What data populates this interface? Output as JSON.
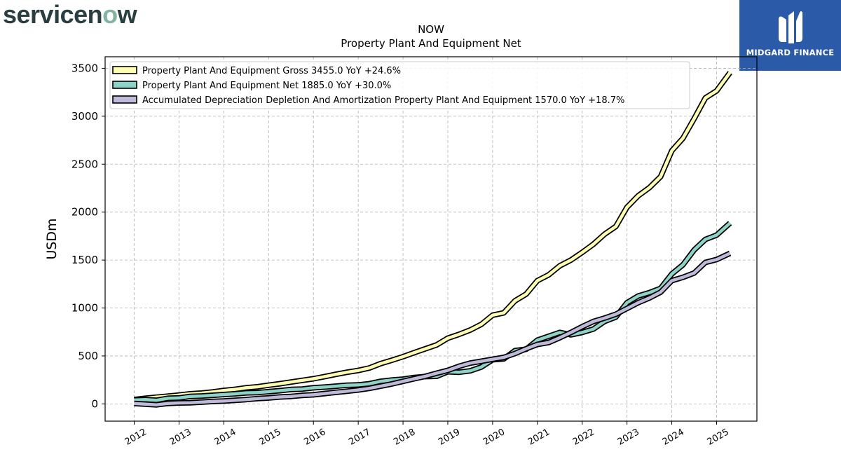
{
  "brand": {
    "logo_text_pre": "servicen",
    "logo_text_o": "o",
    "logo_text_post": "w",
    "sponsor_text": "MIDGARD FINANCE",
    "sponsor_bg": "#2b5aa8"
  },
  "chart_data": {
    "type": "line",
    "title": "NOW",
    "subtitle": "Property Plant And Equipment Net",
    "ylabel": "USDm",
    "xlabel": "",
    "ylim": [
      -180,
      3620
    ],
    "xlim": [
      2011.35,
      2025.9
    ],
    "yticks": [
      0,
      500,
      1000,
      1500,
      2000,
      2500,
      3000,
      3500
    ],
    "xticks": [
      "2012",
      "2013",
      "2014",
      "2015",
      "2016",
      "2017",
      "2018",
      "2019",
      "2020",
      "2021",
      "2022",
      "2023",
      "2024",
      "2025"
    ],
    "grid": true,
    "legend_position": "top-left",
    "series": [
      {
        "name": "Property Plant And Equipment Gross  3455.0 YoY +24.6%",
        "color": "#ffffb3",
        "points": [
          [
            2012.0,
            45
          ],
          [
            2012.25,
            58
          ],
          [
            2012.5,
            70
          ],
          [
            2012.75,
            80
          ],
          [
            2013.0,
            92
          ],
          [
            2013.25,
            105
          ],
          [
            2013.5,
            112
          ],
          [
            2013.75,
            125
          ],
          [
            2014.0,
            140
          ],
          [
            2014.25,
            152
          ],
          [
            2014.5,
            168
          ],
          [
            2014.75,
            178
          ],
          [
            2015.0,
            195
          ],
          [
            2015.25,
            210
          ],
          [
            2015.5,
            228
          ],
          [
            2015.75,
            245
          ],
          [
            2016.0,
            262
          ],
          [
            2016.25,
            285
          ],
          [
            2016.5,
            308
          ],
          [
            2016.75,
            330
          ],
          [
            2017.0,
            348
          ],
          [
            2017.25,
            375
          ],
          [
            2017.5,
            420
          ],
          [
            2017.75,
            455
          ],
          [
            2018.0,
            492
          ],
          [
            2018.25,
            535
          ],
          [
            2018.5,
            575
          ],
          [
            2018.75,
            615
          ],
          [
            2019.0,
            685
          ],
          [
            2019.25,
            725
          ],
          [
            2019.5,
            770
          ],
          [
            2019.75,
            830
          ],
          [
            2020.0,
            925
          ],
          [
            2020.25,
            950
          ],
          [
            2020.5,
            1075
          ],
          [
            2020.75,
            1145
          ],
          [
            2021.0,
            1285
          ],
          [
            2021.25,
            1345
          ],
          [
            2021.5,
            1440
          ],
          [
            2021.75,
            1500
          ],
          [
            2022.0,
            1580
          ],
          [
            2022.25,
            1665
          ],
          [
            2022.5,
            1770
          ],
          [
            2022.75,
            1850
          ],
          [
            2023.0,
            2050
          ],
          [
            2023.25,
            2170
          ],
          [
            2023.5,
            2255
          ],
          [
            2023.75,
            2370
          ],
          [
            2024.0,
            2640
          ],
          [
            2024.25,
            2770
          ],
          [
            2024.5,
            2975
          ],
          [
            2024.75,
            3190
          ],
          [
            2025.0,
            3265
          ],
          [
            2025.3,
            3455
          ]
        ]
      },
      {
        "name": "Property Plant And Equipment Net  1885.0 YoY +30.0%",
        "color": "#8dd3c7",
        "points": [
          [
            2012.0,
            40
          ],
          [
            2012.25,
            45
          ],
          [
            2012.5,
            38
          ],
          [
            2012.75,
            58
          ],
          [
            2013.0,
            62
          ],
          [
            2013.25,
            78
          ],
          [
            2013.5,
            82
          ],
          [
            2013.75,
            90
          ],
          [
            2014.0,
            98
          ],
          [
            2014.25,
            105
          ],
          [
            2014.5,
            115
          ],
          [
            2014.75,
            118
          ],
          [
            2015.0,
            128
          ],
          [
            2015.25,
            138
          ],
          [
            2015.5,
            150
          ],
          [
            2015.75,
            155
          ],
          [
            2016.0,
            168
          ],
          [
            2016.25,
            175
          ],
          [
            2016.5,
            185
          ],
          [
            2016.75,
            195
          ],
          [
            2017.0,
            198
          ],
          [
            2017.25,
            210
          ],
          [
            2017.5,
            235
          ],
          [
            2017.75,
            248
          ],
          [
            2018.0,
            258
          ],
          [
            2018.25,
            275
          ],
          [
            2018.5,
            285
          ],
          [
            2018.75,
            288
          ],
          [
            2019.0,
            335
          ],
          [
            2019.25,
            330
          ],
          [
            2019.5,
            345
          ],
          [
            2019.75,
            385
          ],
          [
            2020.0,
            460
          ],
          [
            2020.25,
            470
          ],
          [
            2020.5,
            555
          ],
          [
            2020.75,
            570
          ],
          [
            2021.0,
            665
          ],
          [
            2021.25,
            705
          ],
          [
            2021.5,
            745
          ],
          [
            2021.75,
            720
          ],
          [
            2022.0,
            745
          ],
          [
            2022.25,
            780
          ],
          [
            2022.5,
            860
          ],
          [
            2022.75,
            905
          ],
          [
            2023.0,
            1055
          ],
          [
            2023.25,
            1125
          ],
          [
            2023.5,
            1160
          ],
          [
            2023.75,
            1205
          ],
          [
            2024.0,
            1355
          ],
          [
            2024.25,
            1450
          ],
          [
            2024.5,
            1605
          ],
          [
            2024.75,
            1715
          ],
          [
            2025.0,
            1760
          ],
          [
            2025.3,
            1885
          ]
        ]
      },
      {
        "name": "Accumulated Depreciation Depletion And Amortization Property Plant And Equipment  1570.0 YoY +18.7%",
        "color": "#bebada",
        "points": [
          [
            2012.0,
            5
          ],
          [
            2012.25,
            -3
          ],
          [
            2012.5,
            -10
          ],
          [
            2012.75,
            5
          ],
          [
            2013.0,
            10
          ],
          [
            2013.25,
            12
          ],
          [
            2013.5,
            18
          ],
          [
            2013.75,
            25
          ],
          [
            2014.0,
            30
          ],
          [
            2014.25,
            38
          ],
          [
            2014.5,
            45
          ],
          [
            2014.75,
            55
          ],
          [
            2015.0,
            62
          ],
          [
            2015.25,
            72
          ],
          [
            2015.5,
            78
          ],
          [
            2015.75,
            88
          ],
          [
            2016.0,
            95
          ],
          [
            2016.25,
            108
          ],
          [
            2016.5,
            120
          ],
          [
            2016.75,
            132
          ],
          [
            2017.0,
            145
          ],
          [
            2017.25,
            162
          ],
          [
            2017.5,
            185
          ],
          [
            2017.75,
            208
          ],
          [
            2018.0,
            235
          ],
          [
            2018.25,
            262
          ],
          [
            2018.5,
            288
          ],
          [
            2018.75,
            320
          ],
          [
            2019.0,
            350
          ],
          [
            2019.25,
            392
          ],
          [
            2019.5,
            425
          ],
          [
            2019.75,
            445
          ],
          [
            2020.0,
            465
          ],
          [
            2020.25,
            485
          ],
          [
            2020.5,
            525
          ],
          [
            2020.75,
            575
          ],
          [
            2021.0,
            620
          ],
          [
            2021.25,
            640
          ],
          [
            2021.5,
            690
          ],
          [
            2021.75,
            745
          ],
          [
            2022.0,
            805
          ],
          [
            2022.25,
            860
          ],
          [
            2022.5,
            895
          ],
          [
            2022.75,
            935
          ],
          [
            2023.0,
            995
          ],
          [
            2023.25,
            1055
          ],
          [
            2023.5,
            1105
          ],
          [
            2023.75,
            1165
          ],
          [
            2024.0,
            1285
          ],
          [
            2024.25,
            1320
          ],
          [
            2024.5,
            1365
          ],
          [
            2024.75,
            1475
          ],
          [
            2025.0,
            1505
          ],
          [
            2025.3,
            1570
          ]
        ]
      }
    ]
  }
}
